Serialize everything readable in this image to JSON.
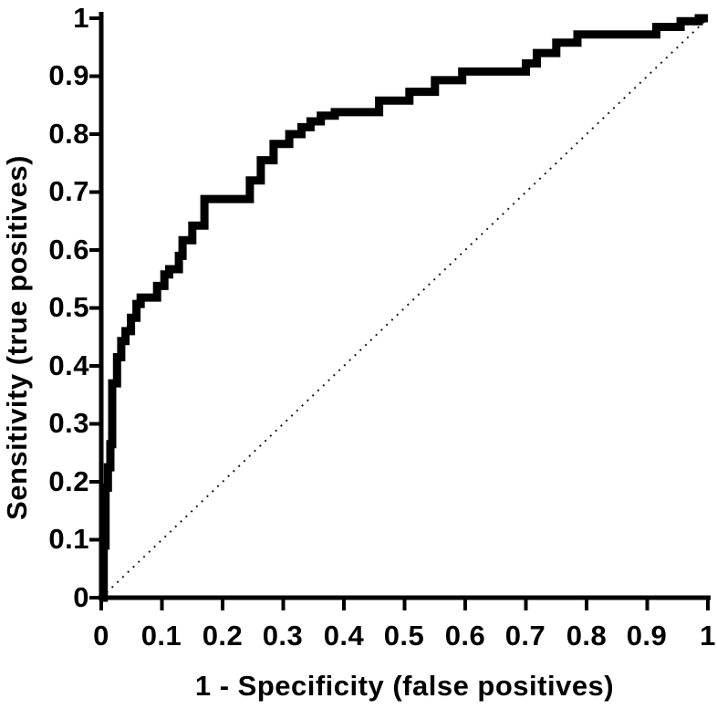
{
  "figure": {
    "background_color": "#ffffff",
    "ink_color": "#000000"
  },
  "chart_data": {
    "type": "line",
    "subtype": "roc-curve",
    "title": "",
    "xlabel": "1 - Specificity (false positives)",
    "ylabel": "Sensitivity (true positives)",
    "xlim": [
      0,
      1
    ],
    "ylim": [
      0,
      1
    ],
    "grid": false,
    "legend": false,
    "x_ticks": [
      "0",
      "0.1",
      "0.2",
      "0.3",
      "0.4",
      "0.5",
      "0.6",
      "0.7",
      "0.8",
      "0.9",
      "1"
    ],
    "y_ticks": [
      "0",
      "0.1",
      "0.2",
      "0.3",
      "0.4",
      "0.5",
      "0.6",
      "0.7",
      "0.8",
      "0.9",
      "1"
    ],
    "series": [
      {
        "name": "Empirical ROC curve (stepped, thick solid)",
        "line_style": "solid",
        "line_width": 9,
        "color": "#000000",
        "points": [
          [
            0,
            0
          ],
          [
            0.004,
            0
          ],
          [
            0.004,
            0.09
          ],
          [
            0.007,
            0.09
          ],
          [
            0.007,
            0.19
          ],
          [
            0.011,
            0.19
          ],
          [
            0.011,
            0.225
          ],
          [
            0.015,
            0.225
          ],
          [
            0.015,
            0.265
          ],
          [
            0.018,
            0.265
          ],
          [
            0.018,
            0.37
          ],
          [
            0.026,
            0.37
          ],
          [
            0.026,
            0.415
          ],
          [
            0.033,
            0.415
          ],
          [
            0.033,
            0.443
          ],
          [
            0.04,
            0.443
          ],
          [
            0.04,
            0.46
          ],
          [
            0.049,
            0.46
          ],
          [
            0.049,
            0.483
          ],
          [
            0.058,
            0.483
          ],
          [
            0.058,
            0.507
          ],
          [
            0.065,
            0.507
          ],
          [
            0.065,
            0.518
          ],
          [
            0.092,
            0.518
          ],
          [
            0.092,
            0.538
          ],
          [
            0.104,
            0.538
          ],
          [
            0.104,
            0.558
          ],
          [
            0.112,
            0.558
          ],
          [
            0.112,
            0.567
          ],
          [
            0.128,
            0.567
          ],
          [
            0.128,
            0.59
          ],
          [
            0.134,
            0.59
          ],
          [
            0.134,
            0.617
          ],
          [
            0.15,
            0.617
          ],
          [
            0.15,
            0.642
          ],
          [
            0.17,
            0.642
          ],
          [
            0.17,
            0.688
          ],
          [
            0.245,
            0.688
          ],
          [
            0.245,
            0.72
          ],
          [
            0.263,
            0.72
          ],
          [
            0.263,
            0.755
          ],
          [
            0.284,
            0.755
          ],
          [
            0.284,
            0.783
          ],
          [
            0.31,
            0.783
          ],
          [
            0.31,
            0.8
          ],
          [
            0.33,
            0.8
          ],
          [
            0.33,
            0.812
          ],
          [
            0.345,
            0.812
          ],
          [
            0.345,
            0.822
          ],
          [
            0.362,
            0.822
          ],
          [
            0.362,
            0.832
          ],
          [
            0.385,
            0.832
          ],
          [
            0.385,
            0.838
          ],
          [
            0.458,
            0.838
          ],
          [
            0.458,
            0.858
          ],
          [
            0.508,
            0.858
          ],
          [
            0.508,
            0.873
          ],
          [
            0.55,
            0.873
          ],
          [
            0.55,
            0.893
          ],
          [
            0.595,
            0.893
          ],
          [
            0.595,
            0.908
          ],
          [
            0.7,
            0.908
          ],
          [
            0.7,
            0.922
          ],
          [
            0.718,
            0.922
          ],
          [
            0.718,
            0.94
          ],
          [
            0.75,
            0.94
          ],
          [
            0.75,
            0.958
          ],
          [
            0.785,
            0.958
          ],
          [
            0.785,
            0.972
          ],
          [
            0.915,
            0.972
          ],
          [
            0.915,
            0.985
          ],
          [
            0.955,
            0.985
          ],
          [
            0.955,
            0.995
          ],
          [
            0.985,
            0.995
          ],
          [
            0.985,
            1
          ],
          [
            1,
            1
          ]
        ]
      },
      {
        "name": "Chance diagonal (dotted reference line)",
        "line_style": "dotted",
        "line_width": 2,
        "color": "#1a1a1a",
        "points": [
          [
            0,
            0
          ],
          [
            1,
            1
          ]
        ]
      }
    ]
  }
}
